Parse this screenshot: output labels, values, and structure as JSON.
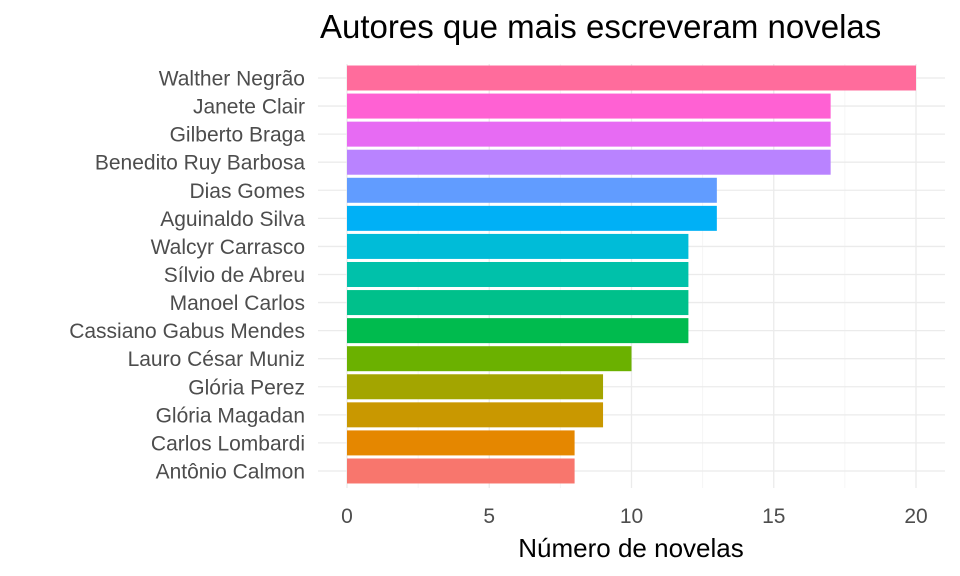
{
  "chart_data": {
    "type": "bar",
    "orientation": "horizontal",
    "title": "Autores que mais escreveram novelas",
    "xlabel": "Número de novelas",
    "ylabel": "",
    "xlim": [
      0,
      20
    ],
    "xticks": [
      0,
      5,
      10,
      15,
      20
    ],
    "grid": true,
    "legend": "none",
    "categories": [
      "Walther Negrão",
      "Janete Clair",
      "Gilberto Braga",
      "Benedito Ruy Barbosa",
      "Dias Gomes",
      "Aguinaldo Silva",
      "Walcyr Carrasco",
      "Sílvio de Abreu",
      "Manoel Carlos",
      "Cassiano Gabus Mendes",
      "Lauro César Muniz",
      "Glória Perez",
      "Glória Magadan",
      "Carlos Lombardi",
      "Antônio Calmon"
    ],
    "values": [
      20,
      17,
      17,
      17,
      13,
      13,
      12,
      12,
      12,
      12,
      10,
      9,
      9,
      8,
      8
    ],
    "colors": [
      "#FF6C9C",
      "#FF61D3",
      "#E76BF3",
      "#B983FF",
      "#619CFF",
      "#00B0F6",
      "#00BCD8",
      "#00C1AA",
      "#00C08B",
      "#00BB4E",
      "#6BB100",
      "#A3A500",
      "#C99800",
      "#E58700",
      "#F8766D"
    ]
  }
}
